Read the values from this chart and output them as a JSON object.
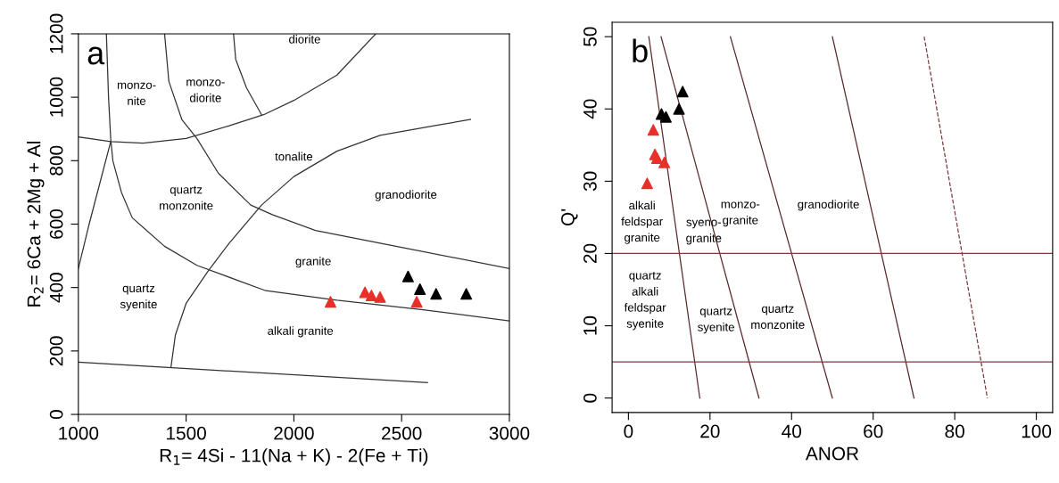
{
  "chart_data": [
    {
      "type": "scatter",
      "xlabel": "R$_{1}$= 4Si - 11(Na + K) - 2(Fe + Ti)",
      "ylabel": "R$_{2}$= 6Ca + 2Mg + Al",
      "xlim": [
        1000,
        3000
      ],
      "ylim": [
        0,
        1200
      ],
      "xticks": [
        1000,
        1500,
        2000,
        2500,
        3000
      ],
      "yticks": [
        0,
        200,
        400,
        600,
        800,
        1000,
        1200
      ],
      "grid": false,
      "legend": false,
      "series": [
        {
          "type": "line",
          "color": "#333333",
          "x": [
            1000,
            2620
          ],
          "values": [
            165,
            100
          ]
        },
        {
          "type": "line",
          "color": "#333333",
          "x": [
            1130,
            1140,
            1150,
            1160,
            1200,
            1250,
            1400,
            1550,
            1750,
            1870,
            2200,
            2600,
            3000
          ],
          "values": [
            1200,
            1000,
            870,
            800,
            700,
            620,
            530,
            470,
            420,
            390,
            360,
            330,
            295
          ]
        },
        {
          "type": "line",
          "color": "#333333",
          "x": [
            1000,
            1050,
            1100,
            1150
          ],
          "values": [
            460,
            600,
            730,
            860
          ]
        },
        {
          "type": "line",
          "color": "#333333",
          "x": [
            1000,
            1150,
            1300,
            1500,
            1700,
            1860,
            2000,
            2200,
            2380
          ],
          "values": [
            875,
            860,
            855,
            870,
            910,
            945,
            990,
            1070,
            1200
          ]
        },
        {
          "type": "line",
          "color": "#333333",
          "x": [
            1400,
            1420,
            1480,
            1550,
            1650,
            1800,
            1900,
            2100,
            2400,
            3000
          ],
          "values": [
            1200,
            1050,
            930,
            870,
            760,
            660,
            630,
            580,
            540,
            460
          ]
        },
        {
          "type": "line",
          "color": "#333333",
          "x": [
            1720,
            1730,
            1780,
            1850
          ],
          "values": [
            1200,
            1120,
            1030,
            945
          ]
        },
        {
          "type": "line",
          "color": "#333333",
          "x": [
            1430,
            1450,
            1500,
            1600,
            1700,
            1850,
            2000,
            2200,
            2400,
            2650,
            2820
          ],
          "values": [
            150,
            250,
            350,
            450,
            540,
            660,
            750,
            830,
            880,
            910,
            930
          ]
        },
        {
          "marker": "triangle",
          "color": "#e8302a",
          "x": [
            2170,
            2330,
            2360,
            2400,
            2570
          ],
          "values": [
            355,
            385,
            375,
            370,
            355
          ]
        },
        {
          "marker": "triangle",
          "color": "#000000",
          "x": [
            2530,
            2585,
            2660,
            2800
          ],
          "values": [
            435,
            395,
            380,
            380
          ]
        }
      ],
      "annotations": [
        "a",
        "monzo-\nnite",
        "monzo-\ndiorite",
        "diorite",
        "tonalite",
        "quartz\nmonzonite",
        "granodiorite",
        "granite",
        "quartz\nsyenite",
        "alkali granite"
      ]
    },
    {
      "type": "scatter",
      "xlabel": "ANOR",
      "ylabel": "Q'",
      "xlim": [
        -4,
        104
      ],
      "ylim": [
        -2,
        52
      ],
      "xticks": [
        0,
        20,
        40,
        60,
        80,
        100
      ],
      "yticks": [
        0,
        10,
        20,
        30,
        40,
        50
      ],
      "grid": false,
      "legend": false,
      "ref_lines": [
        {
          "axis": "y",
          "value": 20,
          "color": "#7b3b3b"
        },
        {
          "axis": "y",
          "value": 5,
          "color": "#7b3b3b"
        }
      ],
      "series": [
        {
          "type": "line",
          "color": "#5a2a2a",
          "x": [
            5,
            17.5
          ],
          "values": [
            50,
            0
          ]
        },
        {
          "type": "line",
          "color": "#5a2a2a",
          "x": [
            8,
            32
          ],
          "values": [
            50,
            0
          ]
        },
        {
          "type": "line",
          "color": "#5a2a2a",
          "x": [
            25,
            50
          ],
          "values": [
            50,
            0
          ]
        },
        {
          "type": "line",
          "color": "#5a2a2a",
          "x": [
            50,
            70
          ],
          "values": [
            50,
            0
          ]
        },
        {
          "type": "line",
          "color": "#7b3b3b",
          "line_style": "dashed",
          "x": [
            72.5,
            88
          ],
          "values": [
            50,
            0
          ]
        },
        {
          "marker": "triangle",
          "color": "#e8302a",
          "x": [
            6.1,
            6.5,
            7,
            8.8,
            4.6
          ],
          "values": [
            37.1,
            33.7,
            33.2,
            32.6,
            29.7
          ]
        },
        {
          "marker": "triangle",
          "color": "#000000",
          "x": [
            8.1,
            9.2,
            12.4,
            13.3
          ],
          "values": [
            39.3,
            38.9,
            40.0,
            42.4
          ]
        }
      ],
      "annotations": [
        "b",
        "alkali\nfeldspar\ngranite",
        "syeno-\ngranite",
        "monzo-\ngranite",
        "granodiorite",
        "quartz\nalkali\nfeldspar\nsyenite",
        "quartz\nsyenite",
        "quartz\nmonzonite"
      ]
    }
  ]
}
